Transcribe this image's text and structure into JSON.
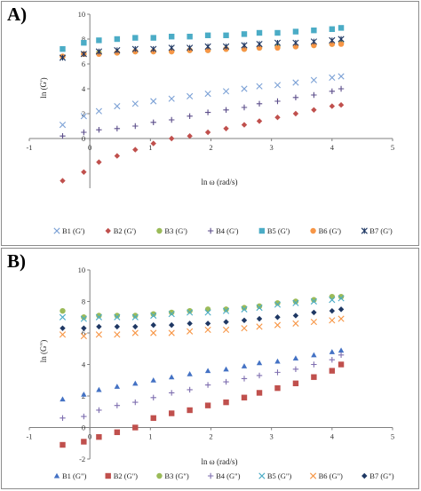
{
  "panels": [
    {
      "label": "A)",
      "chart_data": {
        "type": "scatter",
        "title": "",
        "xlabel": "ln ω  (rad/s)",
        "ylabel": "ln (G')",
        "xlim": [
          -1,
          5
        ],
        "ylim": [
          -4,
          10
        ],
        "x_ticks": [
          -1,
          0,
          1,
          2,
          3,
          4,
          5
        ],
        "y_ticks": [
          0,
          2,
          4,
          6,
          8,
          10
        ],
        "grid": false,
        "legend": "bottom",
        "series": [
          {
            "name": "B1 (G')",
            "marker": "x",
            "color": "#7da2d6",
            "x": [
              -0.45,
              -0.1,
              0.15,
              0.45,
              0.75,
              1.05,
              1.35,
              1.65,
              1.95,
              2.25,
              2.55,
              2.8,
              3.1,
              3.4,
              3.7,
              4.0,
              4.15
            ],
            "y": [
              1.1,
              1.8,
              2.2,
              2.6,
              2.8,
              3.0,
              3.2,
              3.4,
              3.6,
              3.8,
              4.0,
              4.2,
              4.3,
              4.5,
              4.7,
              4.9,
              5.0
            ]
          },
          {
            "name": "B2 (G')",
            "marker": "diamond",
            "color": "#c0504d",
            "x": [
              -0.45,
              -0.1,
              0.15,
              0.45,
              0.75,
              1.05,
              1.35,
              1.65,
              1.95,
              2.25,
              2.55,
              2.8,
              3.1,
              3.4,
              3.7,
              4.0,
              4.15
            ],
            "y": [
              -3.4,
              -2.7,
              -1.9,
              -1.4,
              -0.9,
              -0.4,
              0.0,
              0.2,
              0.5,
              0.8,
              1.1,
              1.4,
              1.7,
              2.0,
              2.3,
              2.6,
              2.7
            ]
          },
          {
            "name": "B3 (G')",
            "marker": "circle",
            "color": "#9bbb59",
            "x": [
              -0.45,
              -0.1,
              0.15,
              0.45,
              0.75,
              1.05,
              1.35,
              1.65,
              1.95,
              2.25,
              2.55,
              2.8,
              3.1,
              3.4,
              3.7,
              4.0,
              4.15
            ],
            "y": [
              6.6,
              6.8,
              6.9,
              6.9,
              7.0,
              7.0,
              7.0,
              7.1,
              7.1,
              7.2,
              7.2,
              7.3,
              7.4,
              7.4,
              7.5,
              7.6,
              7.7
            ]
          },
          {
            "name": "B4 (G')",
            "marker": "plus",
            "color": "#5b4d8a",
            "x": [
              -0.45,
              -0.1,
              0.15,
              0.45,
              0.75,
              1.05,
              1.35,
              1.65,
              1.95,
              2.25,
              2.55,
              2.8,
              3.1,
              3.4,
              3.7,
              4.0,
              4.15
            ],
            "y": [
              0.2,
              0.5,
              0.7,
              0.8,
              1.0,
              1.3,
              1.5,
              1.8,
              2.1,
              2.3,
              2.5,
              2.8,
              3.0,
              3.3,
              3.5,
              3.8,
              4.0
            ]
          },
          {
            "name": "B5 (G')",
            "marker": "square",
            "color": "#4bacc6",
            "x": [
              -0.45,
              -0.1,
              0.15,
              0.45,
              0.75,
              1.05,
              1.35,
              1.65,
              1.95,
              2.25,
              2.55,
              2.8,
              3.1,
              3.4,
              3.7,
              4.0,
              4.15
            ],
            "y": [
              7.2,
              7.7,
              7.9,
              8.0,
              8.1,
              8.1,
              8.2,
              8.2,
              8.3,
              8.3,
              8.4,
              8.5,
              8.5,
              8.6,
              8.7,
              8.8,
              8.9
            ]
          },
          {
            "name": "B6 (G')",
            "marker": "circle",
            "color": "#f79646",
            "x": [
              -0.45,
              -0.1,
              0.15,
              0.45,
              0.75,
              1.05,
              1.35,
              1.65,
              1.95,
              2.25,
              2.55,
              2.8,
              3.1,
              3.4,
              3.7,
              4.0,
              4.15
            ],
            "y": [
              6.6,
              6.8,
              6.8,
              6.9,
              7.0,
              7.0,
              7.0,
              7.1,
              7.1,
              7.2,
              7.2,
              7.3,
              7.3,
              7.4,
              7.5,
              7.6,
              7.6
            ]
          },
          {
            "name": "B7 (G')",
            "marker": "asterisk",
            "color": "#1f3864",
            "x": [
              -0.45,
              -0.1,
              0.15,
              0.45,
              0.75,
              1.05,
              1.35,
              1.65,
              1.95,
              2.25,
              2.55,
              2.8,
              3.1,
              3.4,
              3.7,
              4.0,
              4.15
            ],
            "y": [
              6.5,
              6.8,
              7.0,
              7.1,
              7.2,
              7.2,
              7.3,
              7.3,
              7.4,
              7.4,
              7.5,
              7.6,
              7.7,
              7.7,
              7.8,
              7.9,
              8.0
            ]
          }
        ]
      }
    },
    {
      "label": "B)",
      "chart_data": {
        "type": "scatter",
        "title": "",
        "xlabel": "ln ω  (rad/s)",
        "ylabel": "ln (G\")",
        "xlim": [
          -1,
          5
        ],
        "ylim": [
          -2,
          10
        ],
        "x_ticks": [
          -1,
          0,
          1,
          2,
          3,
          4,
          5
        ],
        "y_ticks": [
          -2,
          0,
          2,
          4,
          6,
          8,
          10
        ],
        "grid": false,
        "legend": "bottom",
        "series": [
          {
            "name": "B1 (G\")",
            "marker": "triangle",
            "color": "#4472c4",
            "x": [
              -0.45,
              -0.1,
              0.15,
              0.45,
              0.75,
              1.05,
              1.35,
              1.65,
              1.95,
              2.25,
              2.55,
              2.8,
              3.1,
              3.4,
              3.7,
              4.0,
              4.15
            ],
            "y": [
              1.8,
              2.1,
              2.4,
              2.6,
              2.8,
              3.0,
              3.2,
              3.4,
              3.6,
              3.7,
              3.9,
              4.1,
              4.2,
              4.4,
              4.6,
              4.8,
              4.9
            ]
          },
          {
            "name": "B2 (G\")",
            "marker": "square",
            "color": "#c0504d",
            "x": [
              -0.45,
              -0.1,
              0.15,
              0.45,
              0.75,
              1.05,
              1.35,
              1.65,
              1.95,
              2.25,
              2.55,
              2.8,
              3.1,
              3.4,
              3.7,
              4.0,
              4.15
            ],
            "y": [
              -1.1,
              -0.9,
              -0.6,
              -0.3,
              0.0,
              0.6,
              0.9,
              1.1,
              1.4,
              1.6,
              1.9,
              2.2,
              2.5,
              2.8,
              3.2,
              3.6,
              4.0
            ]
          },
          {
            "name": "B3 (G\")",
            "marker": "circle",
            "color": "#9bbb59",
            "x": [
              -0.45,
              -0.1,
              0.15,
              0.45,
              0.75,
              1.05,
              1.35,
              1.65,
              1.95,
              2.25,
              2.55,
              2.8,
              3.1,
              3.4,
              3.7,
              4.0,
              4.15
            ],
            "y": [
              7.4,
              7.0,
              7.1,
              7.1,
              7.1,
              7.2,
              7.3,
              7.4,
              7.5,
              7.5,
              7.6,
              7.7,
              7.9,
              8.0,
              8.1,
              8.3,
              8.3
            ]
          },
          {
            "name": "B4 (G\")",
            "marker": "plus",
            "color": "#7f6fb0",
            "x": [
              -0.45,
              -0.1,
              0.15,
              0.45,
              0.75,
              1.05,
              1.35,
              1.65,
              1.95,
              2.25,
              2.55,
              2.8,
              3.1,
              3.4,
              3.7,
              4.0,
              4.15
            ],
            "y": [
              0.6,
              0.7,
              1.1,
              1.4,
              1.6,
              1.9,
              2.2,
              2.4,
              2.7,
              2.9,
              3.1,
              3.3,
              3.5,
              3.7,
              4.0,
              4.3,
              4.6
            ]
          },
          {
            "name": "B5 (G\")",
            "marker": "x",
            "color": "#4bacc6",
            "x": [
              -0.45,
              -0.1,
              0.15,
              0.45,
              0.75,
              1.05,
              1.35,
              1.65,
              1.95,
              2.25,
              2.55,
              2.8,
              3.1,
              3.4,
              3.7,
              4.0,
              4.15
            ],
            "y": [
              7.0,
              6.9,
              7.0,
              7.0,
              7.0,
              7.1,
              7.2,
              7.3,
              7.3,
              7.4,
              7.5,
              7.6,
              7.8,
              7.9,
              8.0,
              8.1,
              8.2
            ]
          },
          {
            "name": "B6 (G\")",
            "marker": "x",
            "color": "#f79646",
            "x": [
              -0.45,
              -0.1,
              0.15,
              0.45,
              0.75,
              1.05,
              1.35,
              1.65,
              1.95,
              2.25,
              2.55,
              2.8,
              3.1,
              3.4,
              3.7,
              4.0,
              4.15
            ],
            "y": [
              5.9,
              5.8,
              5.9,
              5.9,
              6.0,
              6.0,
              6.0,
              6.1,
              6.2,
              6.2,
              6.3,
              6.4,
              6.5,
              6.6,
              6.7,
              6.8,
              6.9
            ]
          },
          {
            "name": "B7 (G\")",
            "marker": "diamond",
            "color": "#1f3864",
            "x": [
              -0.45,
              -0.1,
              0.15,
              0.45,
              0.75,
              1.05,
              1.35,
              1.65,
              1.95,
              2.25,
              2.55,
              2.8,
              3.1,
              3.4,
              3.7,
              4.0,
              4.15
            ],
            "y": [
              6.3,
              6.3,
              6.4,
              6.4,
              6.4,
              6.5,
              6.5,
              6.6,
              6.6,
              6.7,
              6.8,
              6.9,
              7.0,
              7.1,
              7.3,
              7.4,
              7.5
            ]
          }
        ]
      }
    }
  ]
}
